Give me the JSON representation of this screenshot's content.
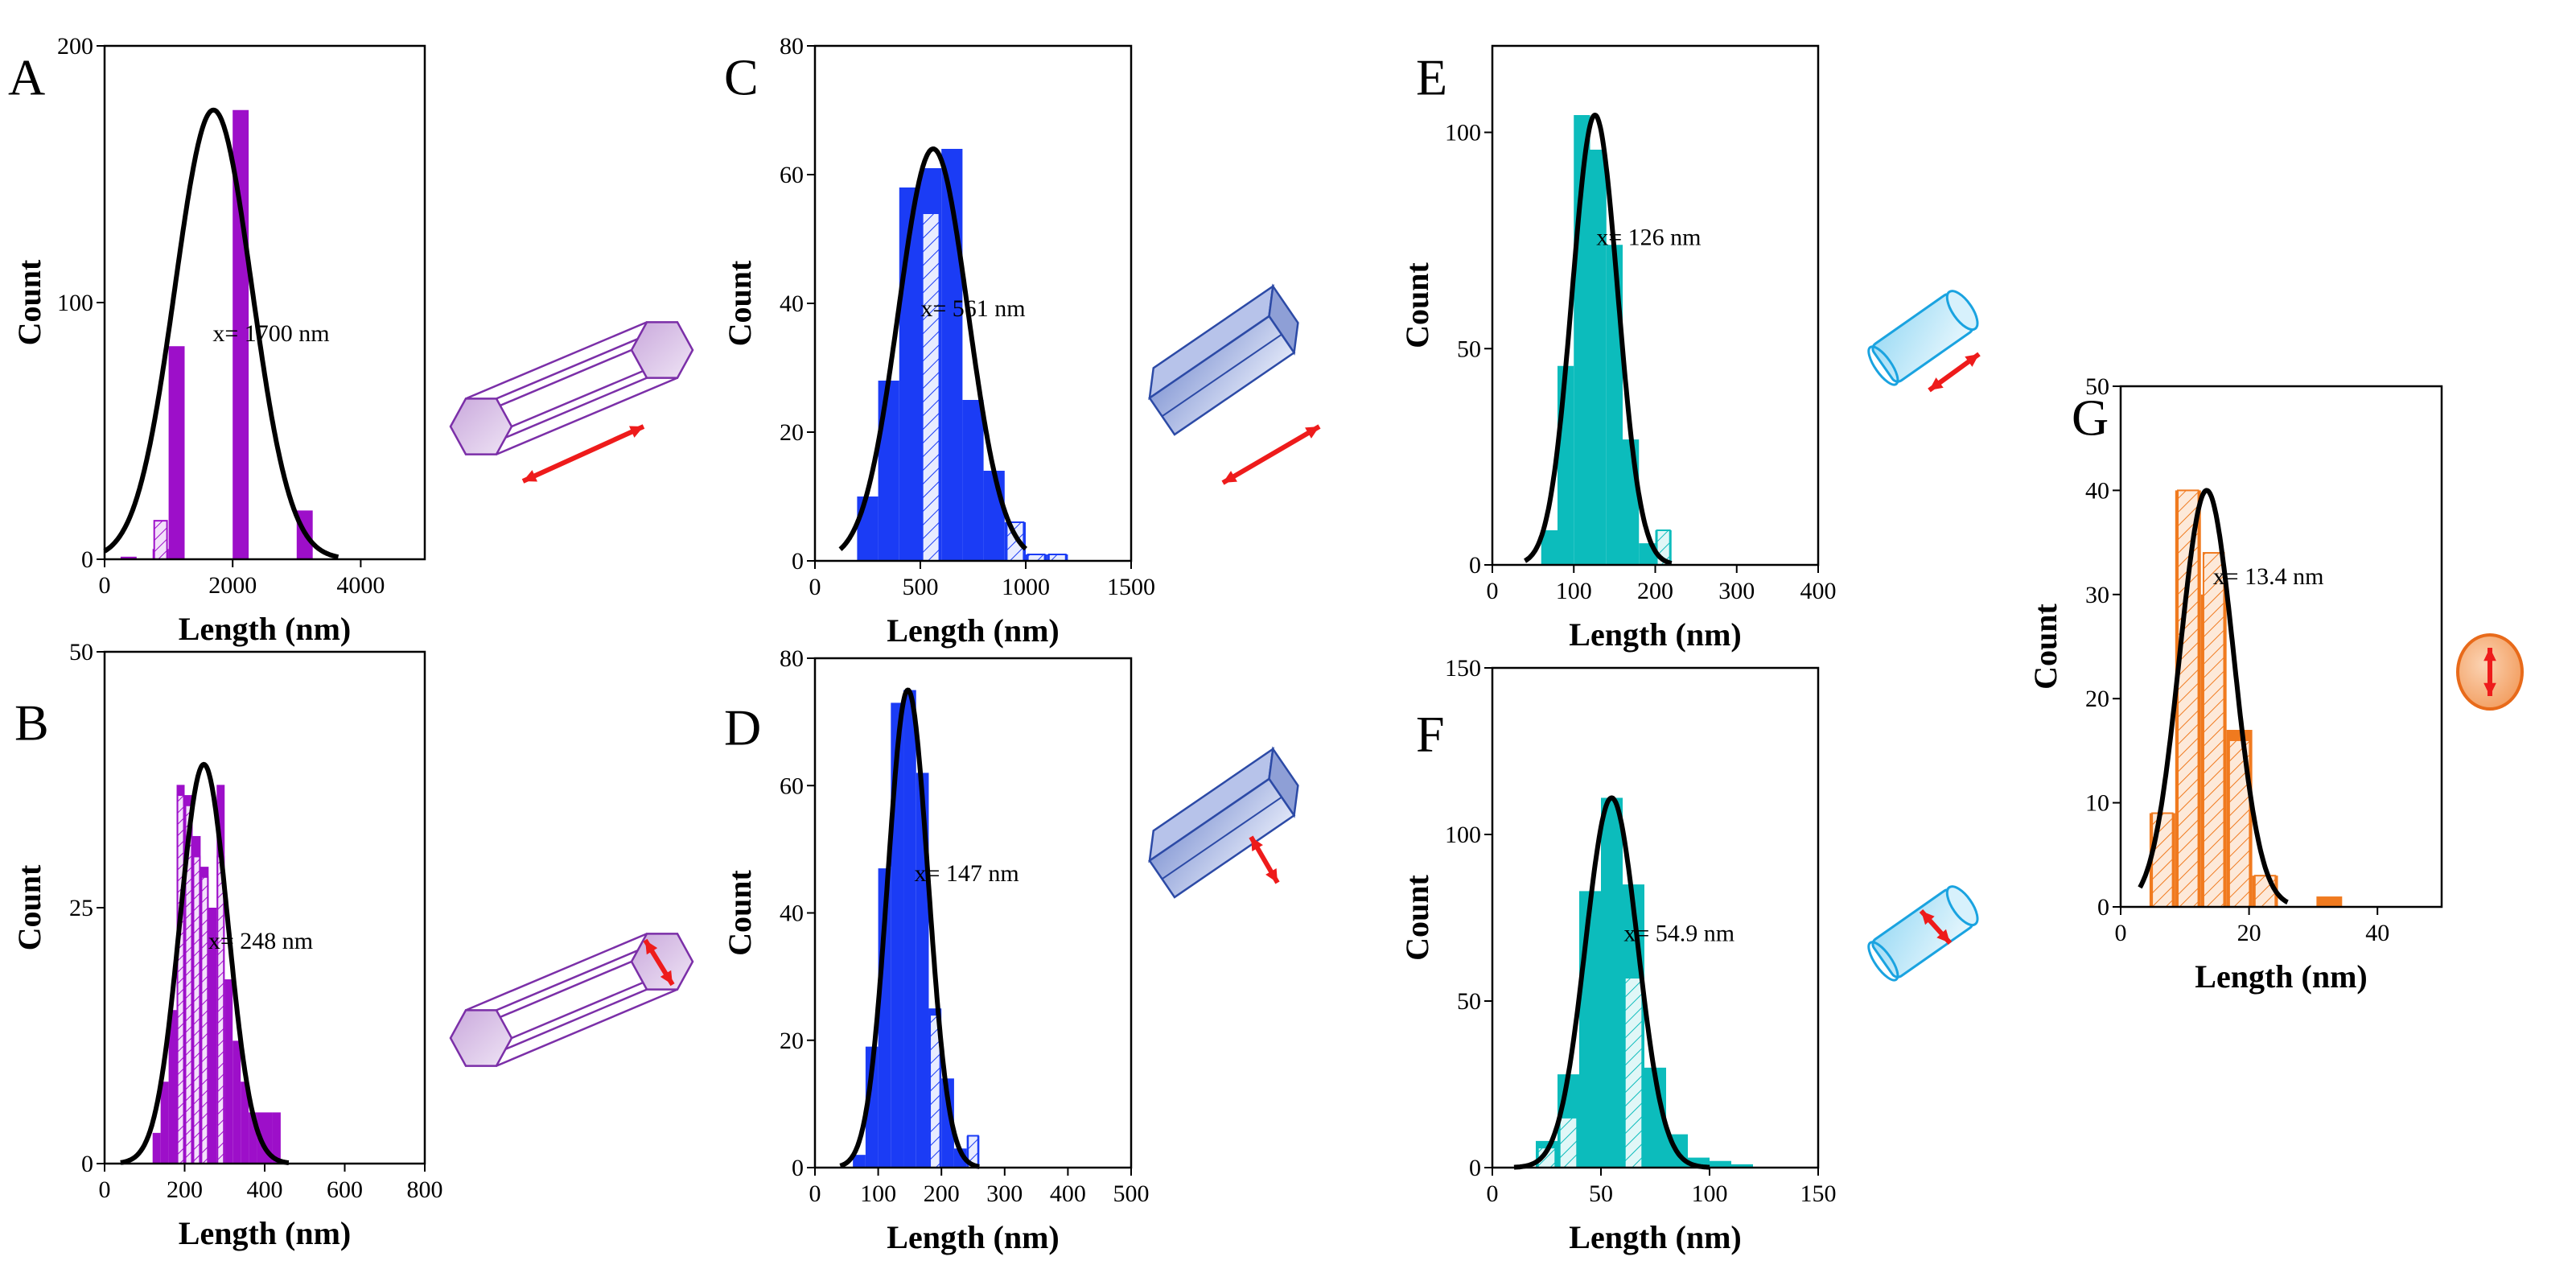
{
  "figure": {
    "description_units": "nm",
    "colors": {
      "purple": "#9d0fc9",
      "blue": "#1b3cf5",
      "teal": "#0cbcbc",
      "orange": "#f07a1f",
      "fit": "#000000",
      "arrow": "#ee1b1b"
    }
  },
  "chart_data": [
    {
      "panel": "A",
      "type": "bar",
      "color": "#9d0fc9",
      "xlabel": "Length (nm)",
      "ylabel": "Count",
      "xlim": [
        0,
        5000
      ],
      "ylim": [
        0,
        200
      ],
      "xticks": [
        0,
        2000,
        4000
      ],
      "yticks": [
        0,
        100,
        200
      ],
      "bin_width": 250,
      "bins_x": [
        375,
        875,
        1125,
        2125,
        3125
      ],
      "values": [
        1,
        4,
        83,
        175,
        19
      ],
      "hatched": [
        null,
        15,
        null,
        null,
        null
      ],
      "fit": {
        "mean": 1700,
        "sd": 600,
        "amp": 175,
        "range": [
          0,
          3650
        ]
      },
      "annotation": "x= 1700 nm",
      "annotation_at": [
        2600,
        85
      ],
      "shape": "hex-long"
    },
    {
      "panel": "B",
      "type": "bar",
      "color": "#9d0fc9",
      "xlabel": "Length (nm)",
      "ylabel": "Count",
      "xlim": [
        0,
        800
      ],
      "ylim": [
        0,
        50
      ],
      "xticks": [
        0,
        200,
        400,
        600,
        800
      ],
      "yticks": [
        0,
        25,
        50
      ],
      "bin_width": 20,
      "bins_x": [
        130,
        150,
        170,
        190,
        210,
        230,
        250,
        270,
        290,
        310,
        330,
        350,
        370,
        390,
        410,
        430
      ],
      "values": [
        3,
        8,
        15,
        37,
        36,
        32,
        29,
        25,
        37,
        18,
        12,
        8,
        5,
        5,
        5,
        5
      ],
      "hatched": [
        null,
        null,
        null,
        36,
        35,
        30,
        28,
        null,
        30,
        null,
        null,
        null,
        null,
        null,
        null,
        null
      ],
      "fit": {
        "mean": 248,
        "sd": 60,
        "amp": 39,
        "range": [
          40,
          460
        ]
      },
      "annotation": "x= 248 nm",
      "annotation_at": [
        390,
        21
      ],
      "shape": "hex-diameter"
    },
    {
      "panel": "C",
      "type": "bar",
      "color": "#1b3cf5",
      "xlabel": "Length (nm)",
      "ylabel": "Count",
      "xlim": [
        0,
        1500
      ],
      "ylim": [
        0,
        80
      ],
      "xticks": [
        0,
        500,
        1000,
        1500
      ],
      "yticks": [
        0,
        20,
        40,
        60,
        80
      ],
      "bin_width": 100,
      "bins_x": [
        250,
        350,
        450,
        550,
        650,
        750,
        850,
        950,
        1050,
        1150
      ],
      "values": [
        10,
        28,
        58,
        61,
        64,
        25,
        14,
        6,
        1,
        1
      ],
      "hatched": [
        null,
        null,
        null,
        54,
        null,
        null,
        null,
        6,
        1,
        1
      ],
      "fit": {
        "mean": 561,
        "sd": 165,
        "amp": 64,
        "range": [
          120,
          1000
        ]
      },
      "annotation": "x= 561 nm",
      "annotation_at": [
        750,
        38
      ],
      "shape": "prism-long"
    },
    {
      "panel": "D",
      "type": "bar",
      "color": "#1b3cf5",
      "xlabel": "Length (nm)",
      "ylabel": "Count",
      "xlim": [
        0,
        500
      ],
      "ylim": [
        0,
        80
      ],
      "xticks": [
        0,
        100,
        200,
        300,
        400,
        500
      ],
      "yticks": [
        0,
        20,
        40,
        60,
        80
      ],
      "bin_width": 20,
      "bins_x": [
        70,
        90,
        110,
        130,
        150,
        170,
        190,
        210,
        230,
        250
      ],
      "values": [
        2,
        19,
        47,
        73,
        75,
        62,
        25,
        14,
        3,
        5
      ],
      "hatched": [
        null,
        null,
        null,
        null,
        null,
        null,
        24,
        null,
        null,
        5
      ],
      "fit": {
        "mean": 147,
        "sd": 32,
        "amp": 75,
        "range": [
          40,
          260
        ]
      },
      "annotation": "x= 147 nm",
      "annotation_at": [
        240,
        45
      ],
      "shape": "prism-diameter"
    },
    {
      "panel": "E",
      "type": "bar",
      "color": "#0cbcbc",
      "xlabel": "Length (nm)",
      "ylabel": "Count",
      "xlim": [
        0,
        400
      ],
      "ylim": [
        0,
        120
      ],
      "xticks": [
        0,
        100,
        200,
        300,
        400
      ],
      "yticks": [
        0,
        50,
        100
      ],
      "bin_width": 20,
      "bins_x": [
        70,
        90,
        110,
        130,
        150,
        170,
        190,
        210
      ],
      "values": [
        8,
        46,
        104,
        96,
        74,
        29,
        5,
        8
      ],
      "hatched": [
        null,
        null,
        null,
        null,
        null,
        null,
        null,
        8
      ],
      "fit": {
        "mean": 126,
        "sd": 28,
        "amp": 104,
        "range": [
          40,
          220
        ]
      },
      "annotation": "x= 126 nm",
      "annotation_at": [
        192,
        74
      ],
      "shape": "cylinder-long"
    },
    {
      "panel": "F",
      "type": "bar",
      "color": "#0cbcbc",
      "xlabel": "Length (nm)",
      "ylabel": "Count",
      "xlim": [
        0,
        150
      ],
      "ylim": [
        0,
        150
      ],
      "xticks": [
        0,
        50,
        100,
        150
      ],
      "yticks": [
        0,
        50,
        100,
        150
      ],
      "bin_width": 10,
      "bins_x": [
        25,
        35,
        45,
        55,
        65,
        75,
        85,
        95,
        105,
        115
      ],
      "values": [
        8,
        28,
        83,
        111,
        85,
        30,
        10,
        3,
        2,
        1
      ],
      "hatched": [
        6,
        15,
        null,
        null,
        57,
        null,
        null,
        null,
        null,
        null
      ],
      "fit": {
        "mean": 54.9,
        "sd": 12,
        "amp": 111,
        "range": [
          10,
          100
        ]
      },
      "annotation": "x= 54.9 nm",
      "annotation_at": [
        86,
        68
      ],
      "shape": "cylinder-diameter"
    },
    {
      "panel": "G",
      "type": "bar",
      "color": "#f07a1f",
      "xlabel": "Length (nm)",
      "ylabel": "Count",
      "xlim": [
        0,
        50
      ],
      "ylim": [
        0,
        50
      ],
      "xticks": [
        0,
        20,
        40
      ],
      "yticks": [
        0,
        10,
        20,
        30,
        40,
        50
      ],
      "bin_width": 4,
      "bins_x": [
        6.5,
        10.5,
        14.5,
        18.5,
        22.5,
        32.5
      ],
      "values": [
        9,
        40,
        30,
        17,
        3,
        1
      ],
      "hatched": [
        9,
        40,
        34,
        16,
        3,
        null
      ],
      "fit": {
        "mean": 13.4,
        "sd": 4.2,
        "amp": 40,
        "range": [
          3,
          26
        ]
      },
      "annotation": "x= 13.4 nm",
      "annotation_at": [
        23,
        31
      ],
      "shape": "sphere"
    }
  ]
}
